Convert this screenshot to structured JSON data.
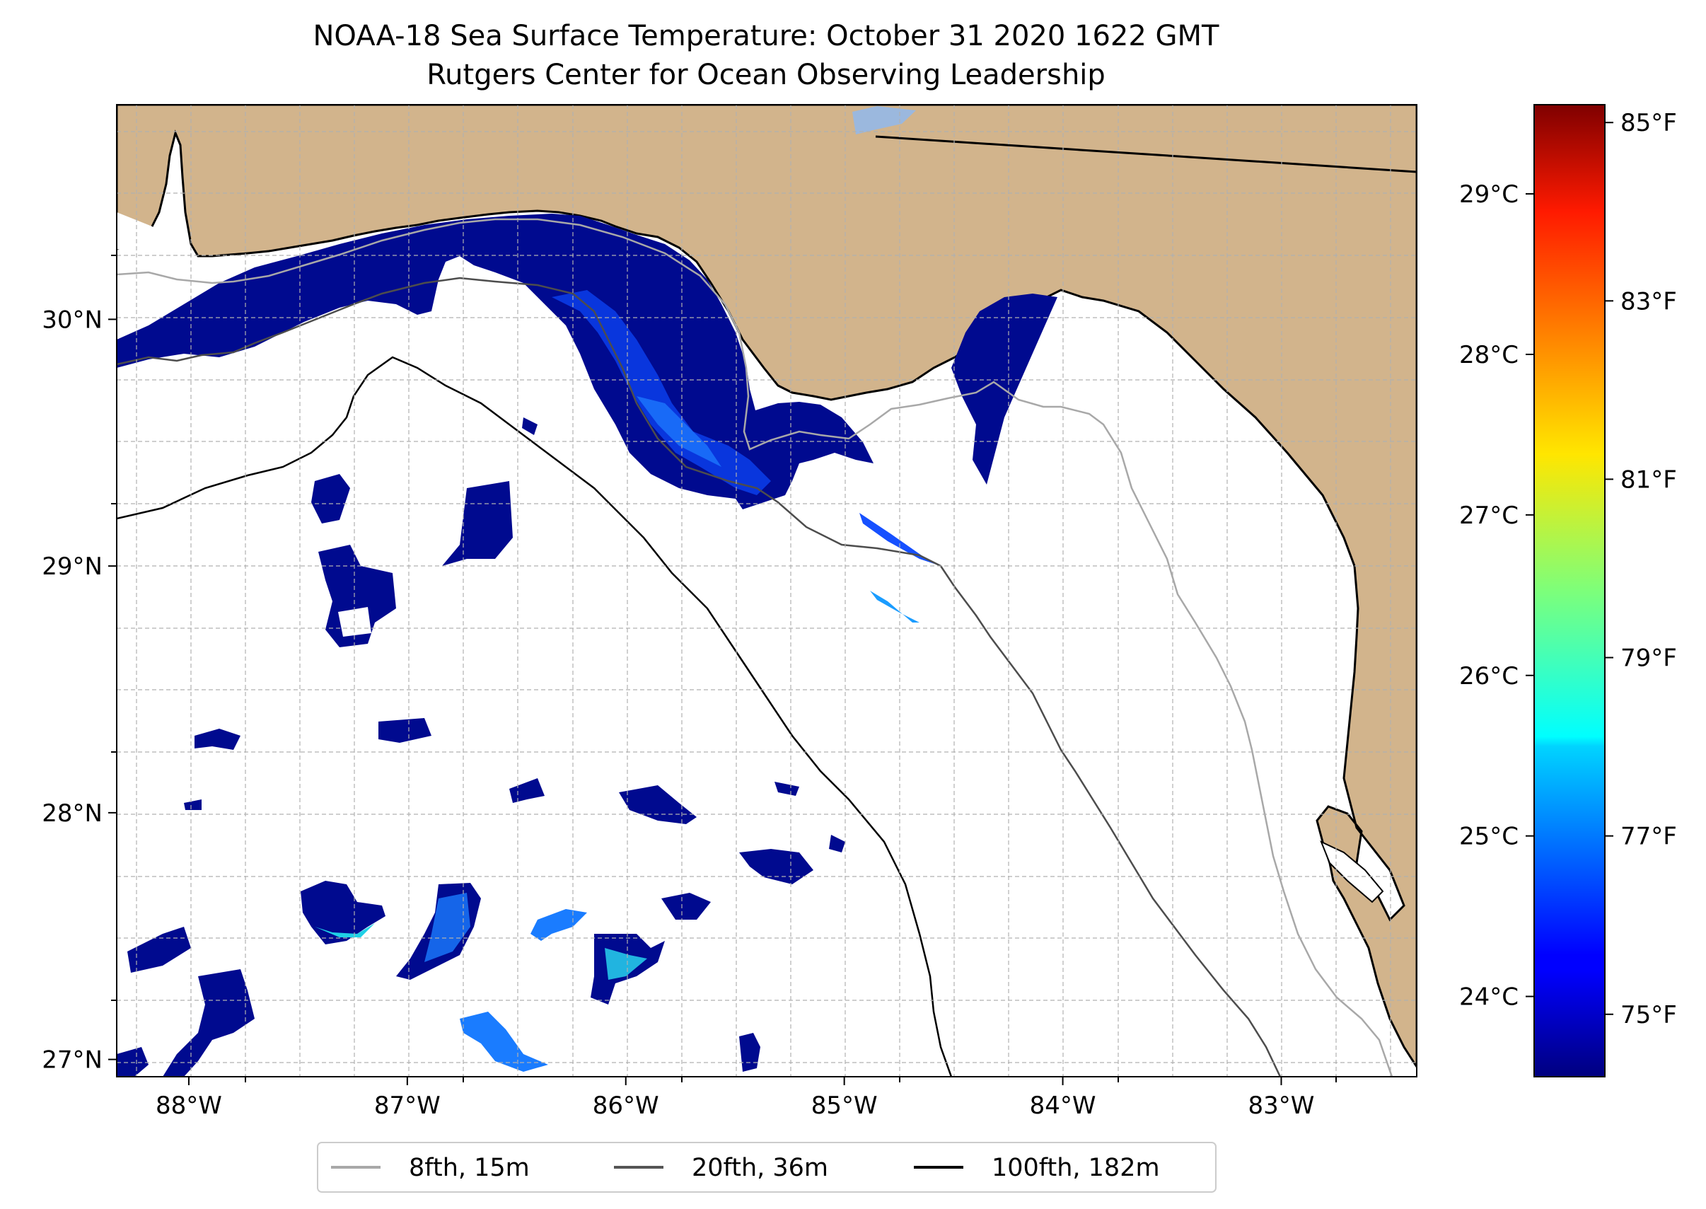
{
  "figure": {
    "title_line1": "NOAA-18 Sea Surface Temperature: October 31 2020 1622 GMT",
    "title_line2": "Rutgers Center for Ocean Observing Leadership"
  },
  "map": {
    "lon_range": [
      -88.33,
      -82.38
    ],
    "lat_range": [
      26.93,
      30.87
    ],
    "lon_ticks": [
      {
        "value": -88,
        "label": "88°W"
      },
      {
        "value": -87,
        "label": "87°W"
      },
      {
        "value": -86,
        "label": "86°W"
      },
      {
        "value": -85,
        "label": "85°W"
      },
      {
        "value": -84,
        "label": "84°W"
      },
      {
        "value": -83,
        "label": "83°W"
      }
    ],
    "lat_ticks": [
      {
        "value": 27,
        "label": "27°N"
      },
      {
        "value": 28,
        "label": "28°N"
      },
      {
        "value": 29,
        "label": "29°N"
      },
      {
        "value": 30,
        "label": "30°N"
      }
    ],
    "gridlines": true,
    "land_color": "#d2b48c",
    "ocean_color": "#ffffff"
  },
  "legend": {
    "placement": "bottom-center",
    "items": [
      {
        "label": "8fth, 15m",
        "color": "#a8a8a8"
      },
      {
        "label": "20fth, 36m",
        "color": "#555555"
      },
      {
        "label": "100fth, 182m",
        "color": "#000000"
      }
    ]
  },
  "colorbar": {
    "colormap": "jet",
    "f_range": [
      74.3,
      85.2
    ],
    "celsius_ticks": [
      {
        "value": 24,
        "label": "24°C"
      },
      {
        "value": 25,
        "label": "25°C"
      },
      {
        "value": 26,
        "label": "26°C"
      },
      {
        "value": 27,
        "label": "27°C"
      },
      {
        "value": 28,
        "label": "28°C"
      },
      {
        "value": 29,
        "label": "29°C"
      }
    ],
    "fahrenheit_ticks": [
      {
        "value": 75,
        "label": "75°F"
      },
      {
        "value": 77,
        "label": "77°F"
      },
      {
        "value": 79,
        "label": "79°F"
      },
      {
        "value": 81,
        "label": "81°F"
      },
      {
        "value": 83,
        "label": "83°F"
      },
      {
        "value": 85,
        "label": "85°F"
      }
    ]
  }
}
